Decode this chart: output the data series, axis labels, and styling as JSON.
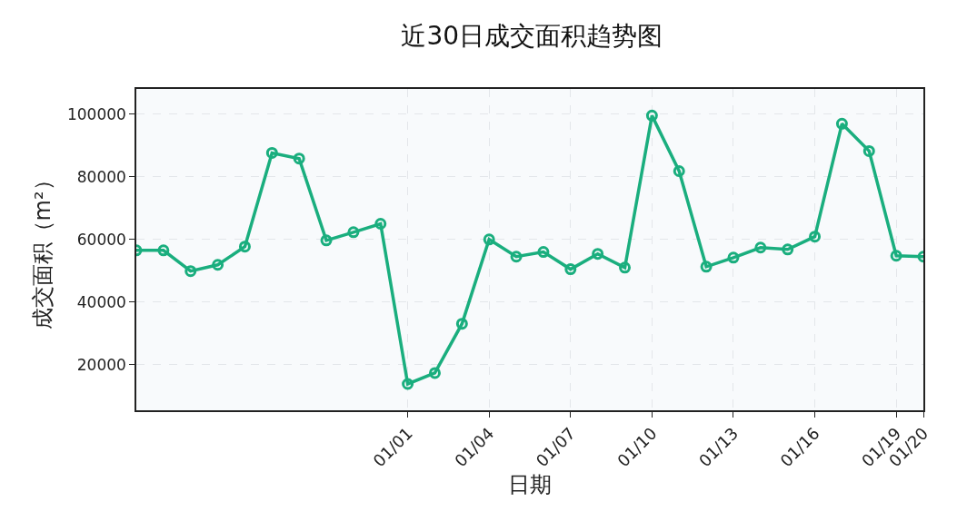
{
  "chart_data": {
    "type": "line",
    "title": "近30日成交面积趋势图",
    "xlabel": "日期",
    "ylabel": "成交面积（m²）",
    "categories": [
      null,
      null,
      null,
      null,
      null,
      null,
      null,
      null,
      null,
      null,
      "01/01",
      null,
      null,
      "01/04",
      null,
      null,
      "01/07",
      null,
      null,
      "01/10",
      null,
      null,
      "01/13",
      null,
      null,
      "01/16",
      null,
      null,
      "01/19",
      "01/20"
    ],
    "series": [
      {
        "color": "#1aae7e",
        "values": [
          56500,
          56500,
          49900,
          51900,
          57700,
          87600,
          85800,
          59700,
          62300,
          65000,
          13900,
          17400,
          33100,
          60000,
          54500,
          56000,
          50500,
          55400,
          51000,
          99500,
          81800,
          51300,
          54200,
          57400,
          56800,
          60900,
          96900,
          88200,
          54800,
          54500
        ]
      }
    ],
    "ylim": [
      5500,
      108000
    ],
    "yticks": [
      20000,
      40000,
      60000,
      80000,
      100000
    ],
    "grid": true,
    "marker": "circle",
    "line_style": "solid"
  }
}
